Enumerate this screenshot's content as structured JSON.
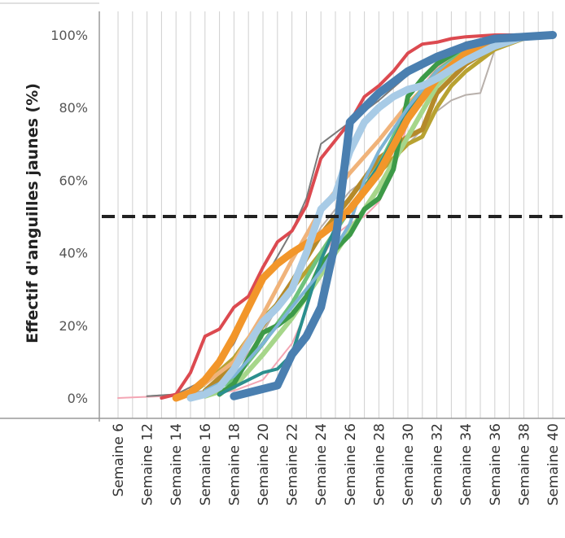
{
  "chart_data": {
    "type": "line",
    "title": "",
    "ylabel": "Effectif d'anguilles jaunes (%)",
    "xlabel": "",
    "x_range": [
      6,
      40
    ],
    "ylim": [
      0,
      100
    ],
    "y_ticks": [
      0,
      20,
      40,
      60,
      80,
      100
    ],
    "y_tick_labels": [
      "0%",
      "20%",
      "40%",
      "60%",
      "80%",
      "100%"
    ],
    "x_ticks": [
      6,
      12,
      14,
      16,
      18,
      20,
      22,
      24,
      26,
      28,
      30,
      32,
      34,
      36,
      38,
      40
    ],
    "x_tick_labels": [
      "Semaine 6",
      "Semaine 12",
      "Semaine 14",
      "Semaine 16",
      "Semaine 18",
      "Semaine 20",
      "Semaine 22",
      "Semaine 24",
      "Semaine 26",
      "Semaine 28",
      "Semaine 30",
      "Semaine 32",
      "Semaine 34",
      "Semaine 36",
      "Semaine 38",
      "Semaine 40"
    ],
    "reference_line": {
      "y": 50,
      "style": "dashed",
      "color": "#222222"
    },
    "grid": {
      "vertical": true,
      "horizontal": false
    },
    "legend": "none",
    "series": [
      {
        "color": "#f4a6b4",
        "width": 2,
        "points": [
          [
            6,
            0
          ],
          [
            11,
            0.3
          ],
          [
            14,
            0.6
          ],
          [
            16,
            1
          ],
          [
            18,
            2
          ],
          [
            20,
            5
          ],
          [
            22,
            15
          ],
          [
            23,
            24
          ],
          [
            24,
            38
          ],
          [
            25,
            45
          ],
          [
            26,
            48
          ],
          [
            27,
            50
          ],
          [
            28,
            54
          ],
          [
            29,
            62
          ],
          [
            30,
            76
          ],
          [
            31,
            86
          ],
          [
            32,
            91
          ],
          [
            34,
            96
          ],
          [
            36,
            99
          ],
          [
            38,
            99.6
          ],
          [
            40,
            100
          ]
        ]
      },
      {
        "color": "#b8b0ab",
        "width": 2,
        "points": [
          [
            12,
            0.5
          ],
          [
            14,
            1
          ],
          [
            16,
            2
          ],
          [
            18,
            7
          ],
          [
            20,
            18
          ],
          [
            22,
            32
          ],
          [
            24,
            47
          ],
          [
            26,
            57
          ],
          [
            28,
            63
          ],
          [
            30,
            70
          ],
          [
            31,
            74
          ],
          [
            32,
            79
          ],
          [
            33,
            82
          ],
          [
            34,
            83.5
          ],
          [
            35,
            84
          ],
          [
            36,
            96
          ],
          [
            38,
            99
          ],
          [
            40,
            100
          ]
        ]
      },
      {
        "color": "#7a7a7a",
        "width": 2,
        "points": [
          [
            12,
            0.5
          ],
          [
            14,
            1
          ],
          [
            16,
            5
          ],
          [
            18,
            15
          ],
          [
            20,
            32
          ],
          [
            22,
            46
          ],
          [
            23,
            55
          ],
          [
            24,
            70
          ],
          [
            25,
            73
          ],
          [
            26,
            76
          ],
          [
            28,
            82
          ],
          [
            30,
            89
          ],
          [
            32,
            94
          ],
          [
            34,
            98
          ],
          [
            36,
            99.5
          ],
          [
            40,
            100
          ]
        ]
      },
      {
        "color": "#dc4a50",
        "width": 4,
        "points": [
          [
            13,
            0
          ],
          [
            14,
            1
          ],
          [
            15,
            7
          ],
          [
            16,
            17
          ],
          [
            17,
            19
          ],
          [
            18,
            25
          ],
          [
            19,
            28
          ],
          [
            20,
            36
          ],
          [
            21,
            43
          ],
          [
            22,
            46
          ],
          [
            23,
            53
          ],
          [
            24,
            66
          ],
          [
            26,
            76
          ],
          [
            27,
            83
          ],
          [
            28,
            86
          ],
          [
            29,
            90
          ],
          [
            30,
            95
          ],
          [
            31,
            97.5
          ],
          [
            32,
            98
          ],
          [
            33,
            99
          ],
          [
            34,
            99.5
          ],
          [
            36,
            100
          ],
          [
            40,
            100
          ]
        ]
      },
      {
        "color": "#b8a232",
        "width": 5,
        "points": [
          [
            15,
            1
          ],
          [
            16,
            4
          ],
          [
            18,
            11
          ],
          [
            20,
            22
          ],
          [
            22,
            30
          ],
          [
            24,
            40
          ],
          [
            26,
            52
          ],
          [
            28,
            62
          ],
          [
            30,
            70
          ],
          [
            31,
            72
          ],
          [
            32,
            80
          ],
          [
            33,
            86
          ],
          [
            34,
            90
          ],
          [
            36,
            96
          ],
          [
            38,
            99
          ],
          [
            40,
            100
          ]
        ]
      },
      {
        "color": "#b58a2a",
        "width": 6,
        "points": [
          [
            16,
            2
          ],
          [
            18,
            9
          ],
          [
            20,
            20
          ],
          [
            22,
            32
          ],
          [
            24,
            45
          ],
          [
            26,
            55
          ],
          [
            28,
            66
          ],
          [
            30,
            72
          ],
          [
            31,
            74
          ],
          [
            32,
            84
          ],
          [
            33,
            88
          ],
          [
            34,
            92
          ],
          [
            36,
            97
          ],
          [
            38,
            99.5
          ],
          [
            40,
            100
          ]
        ]
      },
      {
        "color": "#f0b37a",
        "width": 5,
        "points": [
          [
            15,
            2
          ],
          [
            16,
            4
          ],
          [
            18,
            10
          ],
          [
            20,
            23
          ],
          [
            22,
            38
          ],
          [
            24,
            52
          ],
          [
            26,
            62
          ],
          [
            28,
            71
          ],
          [
            30,
            81
          ],
          [
            32,
            89
          ],
          [
            34,
            95
          ],
          [
            36,
            98
          ],
          [
            38,
            99.5
          ],
          [
            40,
            100
          ]
        ]
      },
      {
        "color": "#a6d68a",
        "width": 6,
        "points": [
          [
            16,
            0.5
          ],
          [
            18,
            3
          ],
          [
            20,
            12
          ],
          [
            22,
            22
          ],
          [
            24,
            34
          ],
          [
            26,
            46
          ],
          [
            28,
            58
          ],
          [
            30,
            72
          ],
          [
            32,
            86
          ],
          [
            34,
            94
          ],
          [
            36,
            98
          ],
          [
            38,
            99.5
          ],
          [
            40,
            100
          ]
        ]
      },
      {
        "color": "#6ec27d",
        "width": 5,
        "points": [
          [
            16,
            1
          ],
          [
            18,
            5
          ],
          [
            20,
            15
          ],
          [
            22,
            26
          ],
          [
            23,
            33
          ],
          [
            24,
            40
          ],
          [
            26,
            52
          ],
          [
            28,
            64
          ],
          [
            30,
            80
          ],
          [
            32,
            90
          ],
          [
            34,
            96
          ],
          [
            36,
            99
          ],
          [
            40,
            100
          ]
        ]
      },
      {
        "color": "#3d9a48",
        "width": 6,
        "points": [
          [
            17,
            1
          ],
          [
            18,
            4
          ],
          [
            20,
            18
          ],
          [
            21,
            20
          ],
          [
            22,
            23
          ],
          [
            23,
            28
          ],
          [
            24,
            37
          ],
          [
            26,
            45
          ],
          [
            27,
            52
          ],
          [
            28,
            55
          ],
          [
            29,
            63
          ],
          [
            30,
            83
          ],
          [
            31,
            88
          ],
          [
            32,
            92
          ],
          [
            34,
            97
          ],
          [
            36,
            99
          ],
          [
            40,
            100
          ]
        ]
      },
      {
        "color": "#2b8f8e",
        "width": 4,
        "points": [
          [
            17,
            1
          ],
          [
            19,
            5
          ],
          [
            20,
            7
          ],
          [
            21,
            8
          ],
          [
            22,
            12
          ],
          [
            23,
            25
          ],
          [
            24,
            38
          ],
          [
            25,
            47
          ],
          [
            26,
            52
          ],
          [
            27,
            58
          ],
          [
            28,
            64
          ],
          [
            29,
            71
          ],
          [
            30,
            79
          ],
          [
            32,
            88
          ],
          [
            34,
            95
          ],
          [
            36,
            99
          ],
          [
            40,
            100
          ]
        ]
      },
      {
        "color": "#7db4d6",
        "width": 4,
        "points": [
          [
            16,
            2
          ],
          [
            18,
            6
          ],
          [
            20,
            15
          ],
          [
            22,
            25
          ],
          [
            24,
            35
          ],
          [
            26,
            48
          ],
          [
            27,
            60
          ],
          [
            28,
            68
          ],
          [
            29,
            74
          ],
          [
            30,
            80
          ],
          [
            32,
            90
          ],
          [
            34,
            95
          ],
          [
            36,
            98
          ],
          [
            38,
            99.5
          ],
          [
            40,
            100
          ]
        ]
      },
      {
        "color": "#f2962a",
        "width": 9,
        "points": [
          [
            14,
            0
          ],
          [
            15,
            1.5
          ],
          [
            16,
            5
          ],
          [
            17,
            10
          ],
          [
            18,
            17
          ],
          [
            19,
            25
          ],
          [
            20,
            33
          ],
          [
            21,
            37
          ],
          [
            22,
            40
          ],
          [
            24,
            45
          ],
          [
            25,
            48
          ],
          [
            26,
            52
          ],
          [
            28,
            62
          ],
          [
            30,
            77
          ],
          [
            32,
            88
          ],
          [
            34,
            95
          ],
          [
            36,
            98.5
          ],
          [
            38,
            99.5
          ],
          [
            40,
            100
          ]
        ]
      },
      {
        "color": "#a8cbe6",
        "width": 9,
        "points": [
          [
            15,
            0
          ],
          [
            16,
            1
          ],
          [
            17,
            3
          ],
          [
            18,
            8
          ],
          [
            19,
            15
          ],
          [
            20,
            21
          ],
          [
            21,
            25
          ],
          [
            22,
            30
          ],
          [
            23,
            40
          ],
          [
            24,
            52
          ],
          [
            25,
            56
          ],
          [
            26,
            68
          ],
          [
            27,
            76
          ],
          [
            28,
            80
          ],
          [
            29,
            83
          ],
          [
            30,
            85
          ],
          [
            31,
            86
          ],
          [
            32,
            88
          ],
          [
            34,
            93
          ],
          [
            36,
            97
          ],
          [
            38,
            99.5
          ],
          [
            40,
            100
          ]
        ]
      },
      {
        "color": "#4a7fb0",
        "width": 10,
        "points": [
          [
            18,
            0.5
          ],
          [
            21,
            3.5
          ],
          [
            22,
            12
          ],
          [
            23,
            17
          ],
          [
            24,
            25
          ],
          [
            25,
            43
          ],
          [
            26,
            76
          ],
          [
            27,
            80
          ],
          [
            28,
            84
          ],
          [
            29,
            87
          ],
          [
            30,
            90
          ],
          [
            32,
            94
          ],
          [
            34,
            97
          ],
          [
            36,
            99
          ],
          [
            38,
            99.5
          ],
          [
            40,
            100
          ]
        ]
      }
    ]
  }
}
